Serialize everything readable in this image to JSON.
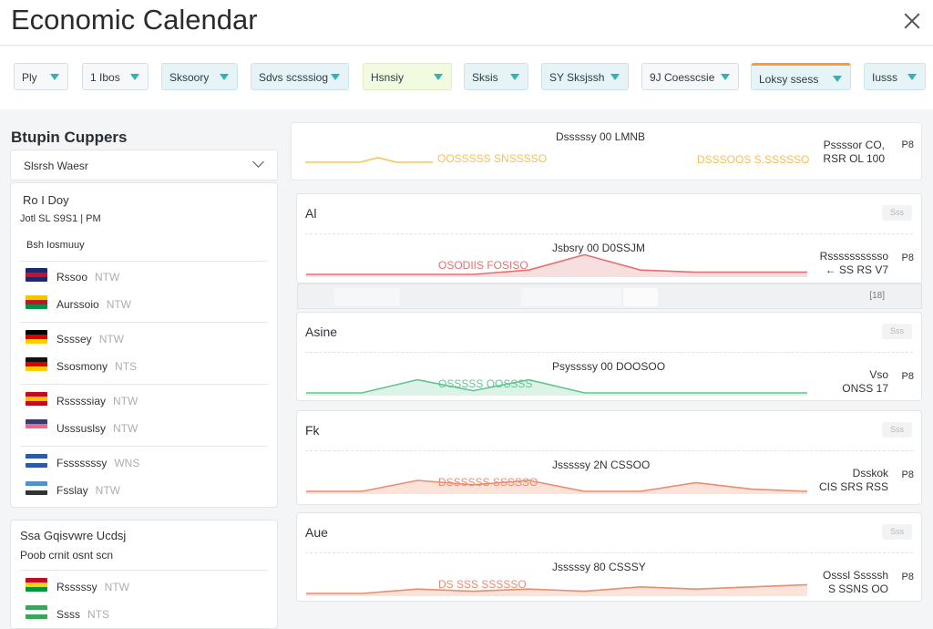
{
  "header": {
    "title": "Economic Calendar"
  },
  "filters": [
    {
      "label": "Ply",
      "style": "plain"
    },
    {
      "label": "1 Ibos",
      "style": "plain"
    },
    {
      "label": "Sksoory",
      "style": "teal"
    },
    {
      "label": "Sdvs scsssiog",
      "style": "teal"
    },
    {
      "label": "Hsnsiy",
      "style": "lime"
    },
    {
      "label": "Sksis",
      "style": "teal"
    },
    {
      "label": "SY Sksjssh",
      "style": "teal"
    },
    {
      "label": "9J Coesscsie",
      "style": "plain"
    },
    {
      "label": "Loksy  ssess",
      "style": "teal"
    },
    {
      "label": "Iusss",
      "style": "teal"
    }
  ],
  "sidebar": {
    "title": "Btupin Cuppers",
    "dropdown": "Slsrsh Waesr",
    "panel1": {
      "heading": "Ro I Doy",
      "sub": "Jotl SL S9S1 | PM",
      "section": "Bsh Iosmuuy",
      "countries": [
        {
          "name": "Rssoo",
          "code": "NTW",
          "colors": [
            "#1a2a6c",
            "#c8102e",
            "#1a2a6c"
          ]
        },
        {
          "name": "Aurssoio",
          "code": "NTW",
          "colors": [
            "#f2c500",
            "#c8102e",
            "#009246"
          ]
        },
        {
          "name": "Ssssey",
          "code": "NTW",
          "colors": [
            "#000000",
            "#dd0000",
            "#ffce00"
          ]
        },
        {
          "name": "Ssosmony",
          "code": "NTS",
          "colors": [
            "#111111",
            "#dd0000",
            "#ffce00"
          ]
        },
        {
          "name": "Rsssssiay",
          "code": "NTW",
          "colors": [
            "#c60b1e",
            "#ffc400",
            "#c60b1e"
          ]
        },
        {
          "name": "Usssuslsy",
          "code": "NTW",
          "colors": [
            "#3c3b6e",
            "#e86a8c",
            "#ffffff"
          ]
        },
        {
          "name": "Fsssssssy",
          "code": "WNS",
          "colors": [
            "#2b5aa6",
            "#ffffff",
            "#2b5aa6"
          ]
        },
        {
          "name": "Fsslay",
          "code": "NTW",
          "colors": [
            "#4f93c9",
            "#ffffff",
            "#333333"
          ]
        }
      ]
    },
    "panel2": {
      "heading": "Ssa Gqisvwre Ucdsj",
      "sub": "Poob crnit osnt scn",
      "countries": [
        {
          "name": "Rsssssy",
          "code": "NTW",
          "colors": [
            "#c60b1e",
            "#f7d117",
            "#009639"
          ]
        },
        {
          "name": "Ssss",
          "code": "NTS",
          "colors": [
            "#3aa655",
            "#ffffff",
            "#3aa655"
          ]
        }
      ]
    }
  },
  "summary": {
    "date": "Dsssssy 00 LMNB",
    "values": "OOSSSSS  SNSSSSO",
    "values2": "DSSSOOS S.SSSSSO",
    "right1": "Pssssor CO,",
    "right2": "RSR OL 100",
    "side": "P8",
    "line_color": "#f2c94c",
    "line_points": [
      0,
      0,
      0,
      0,
      1,
      0,
      0,
      0
    ]
  },
  "events": [
    {
      "title": "Al",
      "badge": "Sss",
      "date": "Jsbsry 00 D0SSJM",
      "values": "OSODIIS  FOSISO",
      "right1": "Rsssssssssso",
      "right2": "← SS RS V7",
      "side": "P8",
      "color": "#e46f71",
      "fill": "#f8dfdf",
      "points": [
        0,
        0,
        0,
        0,
        0.2,
        0.9,
        0.2,
        0.1,
        0.1,
        0.1
      ]
    },
    {
      "title": "Asine",
      "badge": "Sss",
      "date": "Psyssssy 00 DOOSOO",
      "values": "OSSSSS  OOSSSS",
      "right1": "Vso",
      "right2": "ONSS 17",
      "side": "P8",
      "color": "#62c493",
      "fill": "#def3e8",
      "points": [
        0,
        0,
        0.6,
        0.1,
        0.6,
        0,
        0,
        0,
        0,
        0
      ]
    },
    {
      "title": "Fk",
      "badge": "Sss",
      "date": "Jsssssy 2N CSSOO",
      "values": "DSSSSSS  SSSSSO",
      "right1": "Dsskok",
      "right2": "CIS SRS RSS",
      "side": "P8",
      "color": "#ef8a6e",
      "fill": "#fbe3da",
      "points": [
        0,
        0,
        0.5,
        0.3,
        0.5,
        0,
        0,
        0.4,
        0.1,
        0
      ]
    },
    {
      "title": "Aue",
      "badge": "Sss",
      "date": "Jsssssy 80 CSSSY",
      "values": "DS SSS  SSSSSO",
      "right1": "Osssl Sssssh",
      "right2": "S SSNS OO",
      "side": "P8",
      "color": "#ef8a6e",
      "fill": "#fbe3da",
      "points": [
        0,
        0,
        0.2,
        0.1,
        0.2,
        0.1,
        0.3,
        0.2,
        0.3,
        0.4
      ]
    }
  ]
}
